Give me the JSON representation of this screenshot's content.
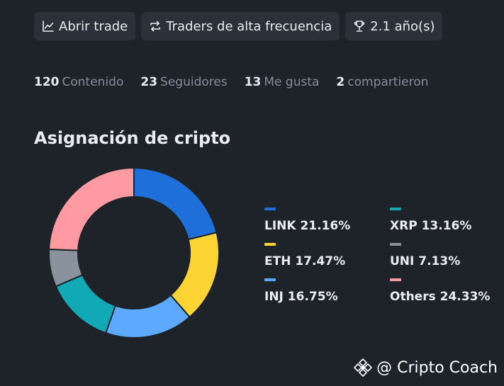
{
  "tags": [
    {
      "icon": "line-chart-icon",
      "label": "Abrir trade"
    },
    {
      "icon": "repeat-icon",
      "label": "Traders de alta frecuencia"
    },
    {
      "icon": "trophy-icon",
      "label": "2.1 año(s)"
    }
  ],
  "stats": [
    {
      "value": "120",
      "label": "Contenido"
    },
    {
      "value": "23",
      "label": "Seguidores"
    },
    {
      "value": "13",
      "label": "Me gusta"
    },
    {
      "value": "2",
      "label": "compartieron"
    }
  ],
  "section_title": "Asignación de cripto",
  "chart_data": {
    "type": "pie",
    "donut": true,
    "title": "Asignación de cripto",
    "legend_placement": "right",
    "slices": [
      {
        "label": "LINK",
        "value": 21.16,
        "display": "LINK 21.16%",
        "color": "#1e6fd9"
      },
      {
        "label": "ETH",
        "value": 17.47,
        "display": "ETH 17.47%",
        "color": "#fcd535"
      },
      {
        "label": "INJ",
        "value": 16.75,
        "display": "INJ 16.75%",
        "color": "#5da9ff"
      },
      {
        "label": "XRP",
        "value": 13.16,
        "display": "XRP 13.16%",
        "color": "#12a9b7"
      },
      {
        "label": "UNI",
        "value": 7.13,
        "display": "UNI 7.13%",
        "color": "#8a929e"
      },
      {
        "label": "Others",
        "value": 24.33,
        "display": "Others 24.33%",
        "color": "#ff9aa2"
      }
    ],
    "legend_order": [
      "LINK",
      "XRP",
      "ETH",
      "UNI",
      "INJ",
      "Others"
    ]
  },
  "watermark": {
    "icon": "binance-logo-icon",
    "text": "@ Cripto Coach"
  }
}
